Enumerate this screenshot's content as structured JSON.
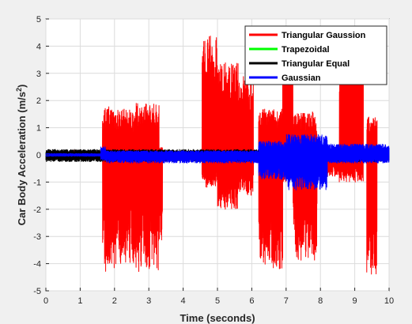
{
  "chart_data": {
    "type": "line",
    "title": "",
    "xlabel": "Time (seconds)",
    "ylabel_main": "Car Body Acceleration (m/s",
    "ylabel_sup": "2",
    "ylabel_end": ")",
    "xlim": [
      0,
      10
    ],
    "ylim": [
      -5,
      5
    ],
    "xticks": [
      0,
      1,
      2,
      3,
      4,
      5,
      6,
      7,
      8,
      9,
      10
    ],
    "yticks": [
      -5,
      -4,
      -3,
      -2,
      -1,
      0,
      1,
      2,
      3,
      4,
      5
    ],
    "grid": true,
    "legend_position": "top-right",
    "series": [
      {
        "name": "Triangular Gaussion",
        "color": "#ff0000",
        "segments": [
          {
            "range": [
              0.0,
              0.8
            ],
            "upper": 0.03,
            "lower": -0.03
          },
          {
            "range": [
              0.8,
              1.0
            ],
            "upper": 0.18,
            "lower": -0.05
          },
          {
            "range": [
              1.0,
              1.65
            ],
            "upper": 0.08,
            "lower": -0.12
          },
          {
            "range": [
              1.65,
              2.1
            ],
            "upper": 1.8,
            "lower": -4.3
          },
          {
            "range": [
              2.1,
              2.6
            ],
            "upper": 1.7,
            "lower": -4.0
          },
          {
            "range": [
              2.6,
              3.3
            ],
            "upper": 1.9,
            "lower": -4.3
          },
          {
            "range": [
              3.3,
              3.4
            ],
            "upper": 0.3,
            "lower": -3.2
          },
          {
            "range": [
              3.4,
              4.55
            ],
            "upper": 0.05,
            "lower": -0.05
          },
          {
            "range": [
              4.55,
              5.0
            ],
            "upper": 4.4,
            "lower": -1.2
          },
          {
            "range": [
              5.0,
              5.6
            ],
            "upper": 3.4,
            "lower": -2.0
          },
          {
            "range": [
              5.6,
              6.05
            ],
            "upper": 3.0,
            "lower": -1.5
          },
          {
            "range": [
              6.05,
              6.2
            ],
            "upper": 0.15,
            "lower": -0.15
          },
          {
            "range": [
              6.2,
              6.9
            ],
            "upper": 1.7,
            "lower": -4.2
          },
          {
            "range": [
              6.9,
              7.2
            ],
            "upper": 4.2,
            "lower": -1.0
          },
          {
            "range": [
              7.2,
              7.9
            ],
            "upper": 1.6,
            "lower": -3.9
          },
          {
            "range": [
              7.9,
              8.55
            ],
            "upper": 0.2,
            "lower": -0.8
          },
          {
            "range": [
              8.55,
              9.25
            ],
            "upper": 4.2,
            "lower": -1.0
          },
          {
            "range": [
              9.25,
              9.35
            ],
            "upper": 0.1,
            "lower": -0.1
          },
          {
            "range": [
              9.35,
              9.65
            ],
            "upper": 1.4,
            "lower": -4.4
          },
          {
            "range": [
              9.65,
              10.0
            ],
            "upper": 0.1,
            "lower": -0.2
          }
        ]
      },
      {
        "name": "Trapezoidal",
        "color": "#00ff00",
        "segments": [
          {
            "range": [
              0.0,
              10.0
            ],
            "upper": 0.12,
            "lower": -0.12
          }
        ]
      },
      {
        "name": "Triangular Equal",
        "color": "#000000",
        "segments": [
          {
            "range": [
              0.0,
              10.0
            ],
            "upper": 0.2,
            "lower": -0.25
          }
        ]
      },
      {
        "name": "Gaussian",
        "color": "#0000ff",
        "segments": [
          {
            "range": [
              0.0,
              1.6
            ],
            "upper": 0.05,
            "lower": -0.05
          },
          {
            "range": [
              1.6,
              1.75
            ],
            "upper": 0.3,
            "lower": -0.2
          },
          {
            "range": [
              1.75,
              6.2
            ],
            "upper": 0.15,
            "lower": -0.3
          },
          {
            "range": [
              6.2,
              7.0
            ],
            "upper": 0.5,
            "lower": -0.9
          },
          {
            "range": [
              7.0,
              8.2
            ],
            "upper": 0.75,
            "lower": -1.3
          },
          {
            "range": [
              8.2,
              10.0
            ],
            "upper": 0.4,
            "lower": -0.3
          }
        ]
      }
    ]
  }
}
